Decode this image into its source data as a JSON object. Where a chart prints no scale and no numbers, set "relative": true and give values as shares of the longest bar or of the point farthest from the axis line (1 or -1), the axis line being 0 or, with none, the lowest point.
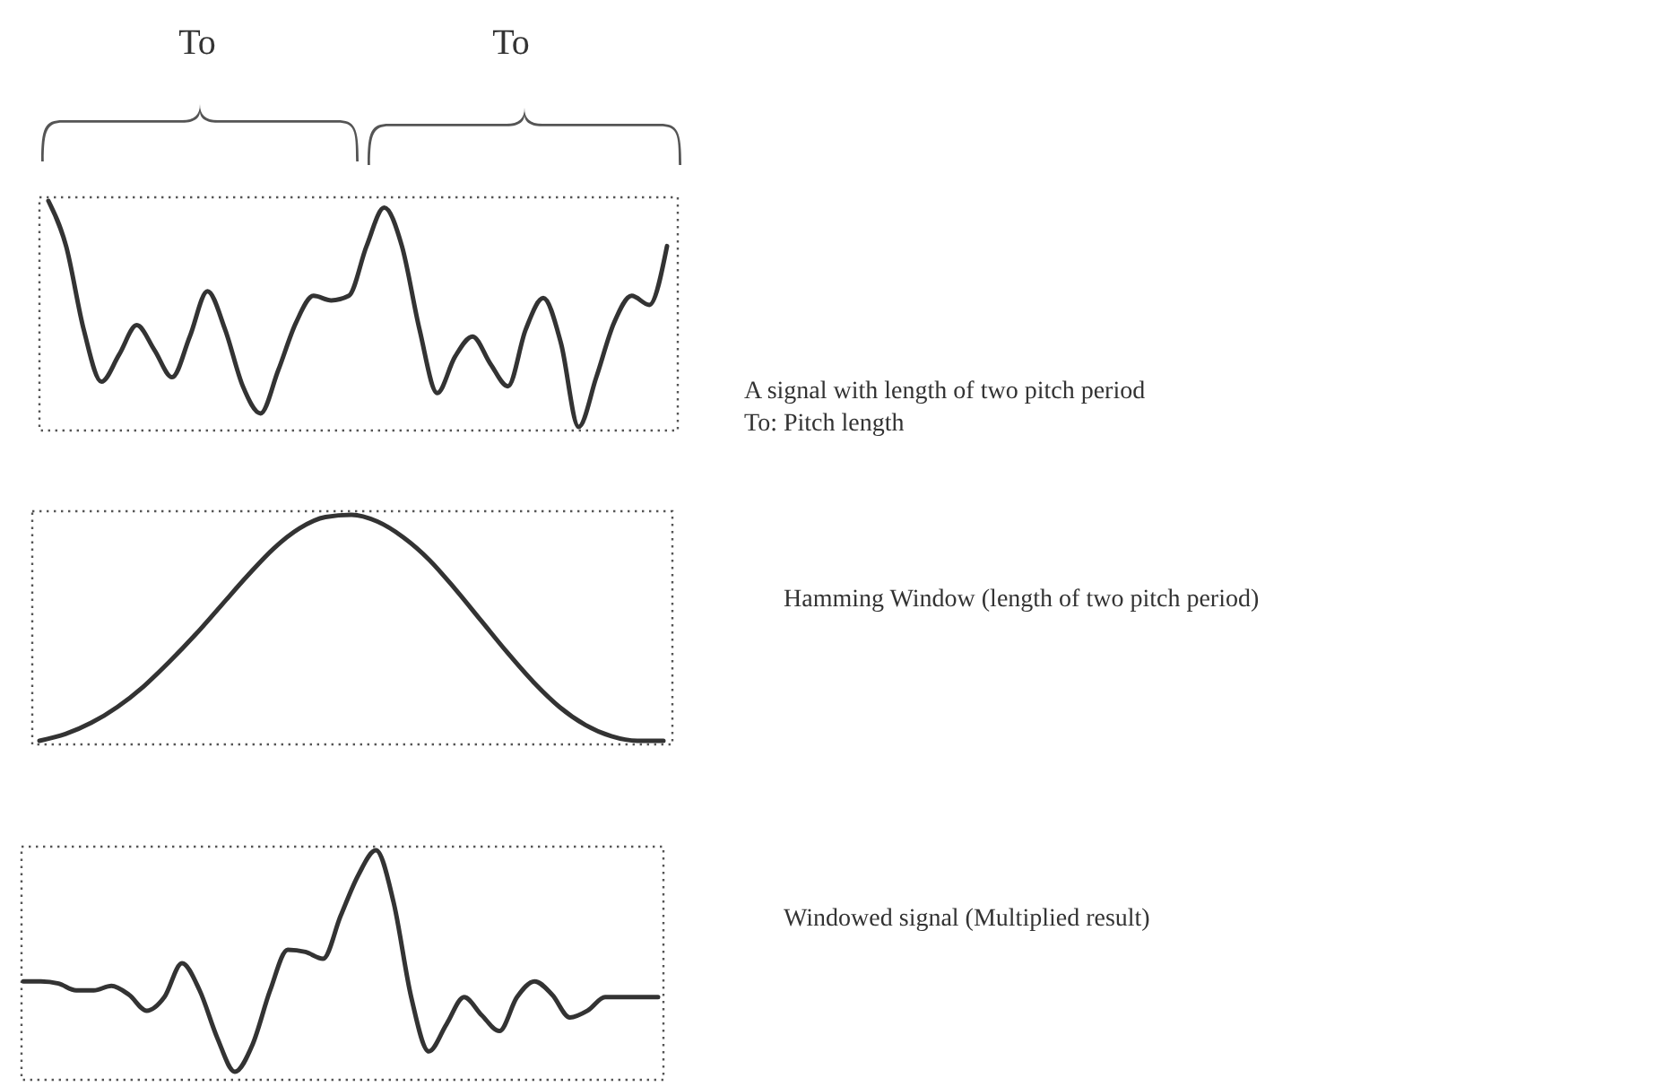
{
  "chart_data": [
    {
      "type": "line",
      "annotations": [
        "A signal with length of two pitch period",
        "To: Pitch length",
        "To",
        "To"
      ],
      "relative": true,
      "line_style": "solid",
      "categories": [
        null,
        null,
        null,
        null,
        null,
        null,
        null,
        null,
        null,
        null,
        null,
        null,
        null,
        null,
        null,
        null,
        null,
        null,
        null,
        null,
        null,
        null,
        null,
        null,
        null,
        null,
        null,
        null,
        null,
        null,
        null,
        null,
        null,
        null,
        null,
        null
      ],
      "series": [
        {
          "color": "#333333",
          "values": [
            1.0,
            0.8,
            0.43,
            0.2,
            0.32,
            0.45,
            0.34,
            0.22,
            0.4,
            0.6,
            0.43,
            0.18,
            0.06,
            0.25,
            0.46,
            0.58,
            0.56,
            0.58,
            0.8,
            0.97,
            0.8,
            0.43,
            0.15,
            0.31,
            0.4,
            0.28,
            0.18,
            0.43,
            0.57,
            0.37,
            0.0,
            0.22,
            0.46,
            0.58,
            0.54,
            0.8
          ]
        }
      ]
    },
    {
      "type": "line",
      "annotations": [
        "Hamming Window (length of two pitch period)"
      ],
      "relative": true,
      "line_style": "solid",
      "categories": [
        null,
        null,
        null,
        null,
        null,
        null,
        null,
        null,
        null,
        null,
        null,
        null,
        null,
        null,
        null,
        null,
        null,
        null,
        null,
        null,
        null,
        null,
        null,
        null,
        null
      ],
      "series": [
        {
          "color": "#333333",
          "values": [
            0.0,
            0.03,
            0.08,
            0.15,
            0.24,
            0.35,
            0.47,
            0.6,
            0.73,
            0.85,
            0.94,
            0.99,
            1.0,
            0.97,
            0.9,
            0.8,
            0.67,
            0.53,
            0.39,
            0.26,
            0.15,
            0.07,
            0.02,
            0.0,
            0.0
          ]
        }
      ]
    },
    {
      "type": "line",
      "annotations": [
        "Windowed signal (Multiplied result)"
      ],
      "relative": true,
      "line_style": "solid",
      "categories": [
        null,
        null,
        null,
        null,
        null,
        null,
        null,
        null,
        null,
        null,
        null,
        null,
        null,
        null,
        null,
        null,
        null,
        null,
        null,
        null,
        null,
        null,
        null,
        null,
        null,
        null,
        null,
        null,
        null,
        null,
        null,
        null,
        null,
        null,
        null,
        null,
        null
      ],
      "series": [
        {
          "color": "#333333",
          "values": [
            0.42,
            0.42,
            0.41,
            0.38,
            0.38,
            0.4,
            0.36,
            0.29,
            0.35,
            0.5,
            0.38,
            0.17,
            0.02,
            0.14,
            0.38,
            0.56,
            0.55,
            0.52,
            0.71,
            0.89,
            1.0,
            0.77,
            0.35,
            0.11,
            0.23,
            0.35,
            0.27,
            0.2,
            0.35,
            0.42,
            0.36,
            0.26,
            0.29,
            0.35,
            0.35,
            0.35,
            0.35
          ]
        }
      ]
    }
  ]
}
